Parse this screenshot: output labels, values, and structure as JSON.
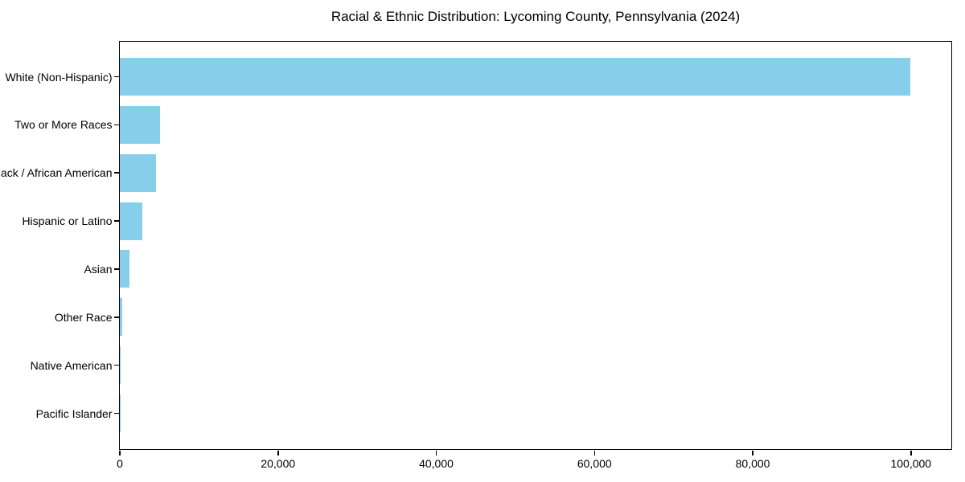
{
  "window": {
    "background": "#FFFFFF"
  },
  "chart_data": {
    "type": "bar",
    "orientation": "horizontal",
    "title": "Racial & Ethnic Distribution: Lycoming County, Pennsylvania (2024)",
    "categories": [
      "White (Non-Hispanic)",
      "Two or More Races",
      "Black / African American",
      "Hispanic or Latino",
      "Asian",
      "Other Race",
      "Native American",
      "Pacific Islander"
    ],
    "values": [
      99900,
      5050,
      4550,
      2800,
      1250,
      300,
      80,
      30
    ],
    "xlabel": "",
    "ylabel": "",
    "xlim": [
      0,
      105000
    ],
    "xticks": [
      0,
      20000,
      40000,
      60000,
      80000,
      100000
    ],
    "xtick_labels": [
      "0",
      "20,000",
      "40,000",
      "60,000",
      "80,000",
      "100,000"
    ],
    "bar_color": "#87CEEB",
    "axis_color": "#000000",
    "text_color": "#000000",
    "grid": false,
    "legend": null
  }
}
